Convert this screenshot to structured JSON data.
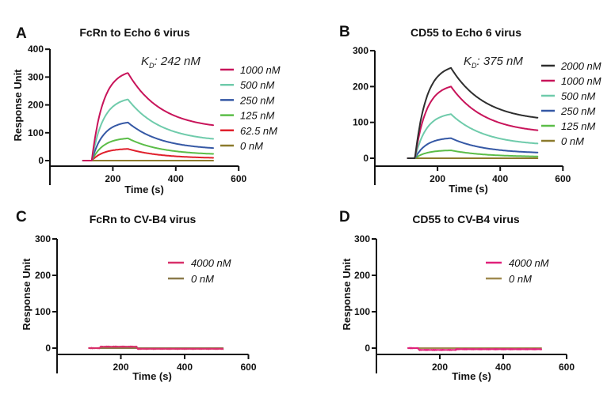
{
  "chart_data": [
    {
      "panel": "A",
      "type": "line",
      "title": "FcRn to Echo 6 virus",
      "xlabel": "Time (s)",
      "ylabel": "Response Unit",
      "xlim": [
        0,
        600
      ],
      "ylim": [
        -20,
        400
      ],
      "xticks": [
        200,
        400,
        600
      ],
      "yticks": [
        0,
        100,
        200,
        300,
        400
      ],
      "annotation": {
        "prefix": "K",
        "subscript": "D",
        "suffix": ":",
        "value": "242 nM"
      },
      "legend_position": "right",
      "t_baseline_start": 105,
      "t_injection_start": 133,
      "t_dissociation_start": 248,
      "t_end": 520,
      "series": [
        {
          "name": "1000 nM",
          "color": "#c8145a",
          "peak": 315,
          "end": 127
        },
        {
          "name": "500 nM",
          "color": "#6fcbab",
          "peak": 220,
          "end": 78
        },
        {
          "name": "250 nM",
          "color": "#3558a5",
          "peak": 137,
          "end": 45
        },
        {
          "name": "125 nM",
          "color": "#5bbd48",
          "peak": 80,
          "end": 24
        },
        {
          "name": "62.5 nM",
          "color": "#e0202c",
          "peak": 42,
          "end": 10
        },
        {
          "name": "0 nM",
          "color": "#8b7a2c",
          "peak": 0,
          "end": 0
        }
      ]
    },
    {
      "panel": "B",
      "type": "line",
      "title": "CD55 to Echo 6 virus",
      "xlabel": "Time (s)",
      "ylabel": "",
      "xlim": [
        0,
        600
      ],
      "ylim": [
        -20,
        300
      ],
      "xticks": [
        200,
        400,
        600
      ],
      "yticks": [
        0,
        100,
        200,
        300
      ],
      "annotation": {
        "prefix": "K",
        "subscript": "D",
        "suffix": ":",
        "value": "375 nM"
      },
      "legend_position": "right",
      "t_baseline_start": 105,
      "t_injection_start": 128,
      "t_dissociation_start": 243,
      "t_end": 520,
      "series": [
        {
          "name": "2000 nM",
          "color": "#2e2e2e",
          "peak": 252,
          "end": 113
        },
        {
          "name": "1000 nM",
          "color": "#c8145a",
          "peak": 200,
          "end": 78
        },
        {
          "name": "500 nM",
          "color": "#6fcbab",
          "peak": 123,
          "end": 41
        },
        {
          "name": "250 nM",
          "color": "#3558a5",
          "peak": 56,
          "end": 16
        },
        {
          "name": "125 nM",
          "color": "#5bbd48",
          "peak": 22,
          "end": 5
        },
        {
          "name": "0 nM",
          "color": "#8b7a2c",
          "peak": 0,
          "end": 0
        }
      ]
    },
    {
      "panel": "C",
      "type": "line",
      "title": "FcRn to CV-B4 virus",
      "xlabel": "Time (s)",
      "ylabel": "Response Unit",
      "xlim": [
        0,
        600
      ],
      "ylim": [
        -20,
        300
      ],
      "xticks": [
        200,
        400,
        600
      ],
      "yticks": [
        0,
        100,
        200,
        300
      ],
      "annotation": null,
      "legend_position": "top-right",
      "t_baseline_start": 100,
      "t_injection_start": 135,
      "t_dissociation_start": 250,
      "t_end": 520,
      "series": [
        {
          "name": "4000 nM",
          "color": "#d8306a",
          "plateau": 4,
          "after": -2
        },
        {
          "name": "0 nM",
          "color": "#8b7a4c",
          "plateau": 0,
          "after": 0
        }
      ]
    },
    {
      "panel": "D",
      "type": "line",
      "title": "CD55 to CV-B4 virus",
      "xlabel": "Time (s)",
      "ylabel": "Response Unit",
      "xlim": [
        0,
        600
      ],
      "ylim": [
        -20,
        300
      ],
      "xticks": [
        200,
        400,
        600
      ],
      "yticks": [
        0,
        100,
        200,
        300
      ],
      "annotation": null,
      "legend_position": "top-right",
      "t_baseline_start": 100,
      "t_injection_start": 133,
      "t_dissociation_start": 250,
      "t_end": 520,
      "series": [
        {
          "name": "4000 nM",
          "color": "#e0207a",
          "plateau": -5,
          "after": -3
        },
        {
          "name": "0 nM",
          "color": "#a08a50",
          "plateau": 0,
          "after": 0
        }
      ]
    }
  ]
}
